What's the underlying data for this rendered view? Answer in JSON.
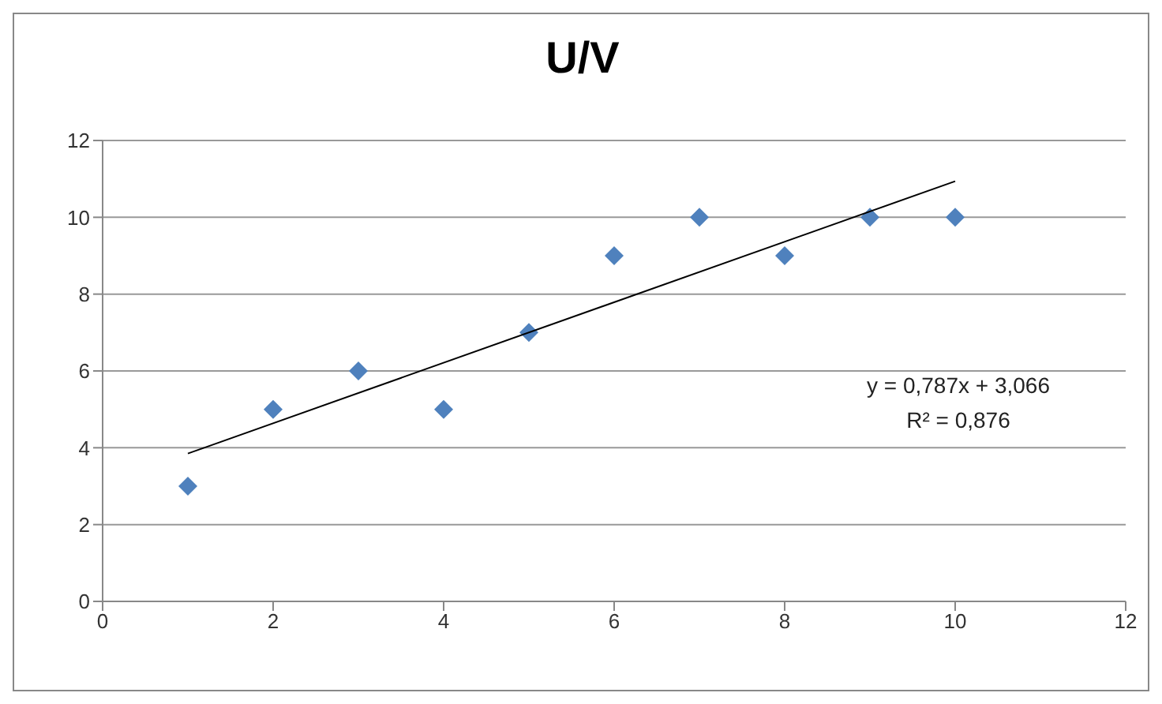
{
  "chart_data": {
    "type": "scatter",
    "title": "U/V",
    "xlim": [
      0,
      12
    ],
    "xticks": [
      0,
      2,
      4,
      6,
      8,
      10,
      12
    ],
    "ylim": [
      0,
      12
    ],
    "yticks": [
      0,
      2,
      4,
      6,
      8,
      10,
      12
    ],
    "grid": "y",
    "legend": false,
    "series": [
      {
        "color": "#4f81bd",
        "marker": "diamond",
        "x": [
          1,
          2,
          3,
          4,
          5,
          6,
          7,
          8,
          9,
          10
        ],
        "values": [
          3,
          5,
          6,
          5,
          7,
          9,
          10,
          9,
          10,
          10
        ]
      },
      {
        "type": "line",
        "color": "#000000",
        "marker": "none",
        "x": [
          1,
          10
        ],
        "values": [
          3.85,
          10.94
        ]
      }
    ],
    "annotations": [
      "y = 0,787x + 3,066",
      "R² = 0,876"
    ]
  }
}
